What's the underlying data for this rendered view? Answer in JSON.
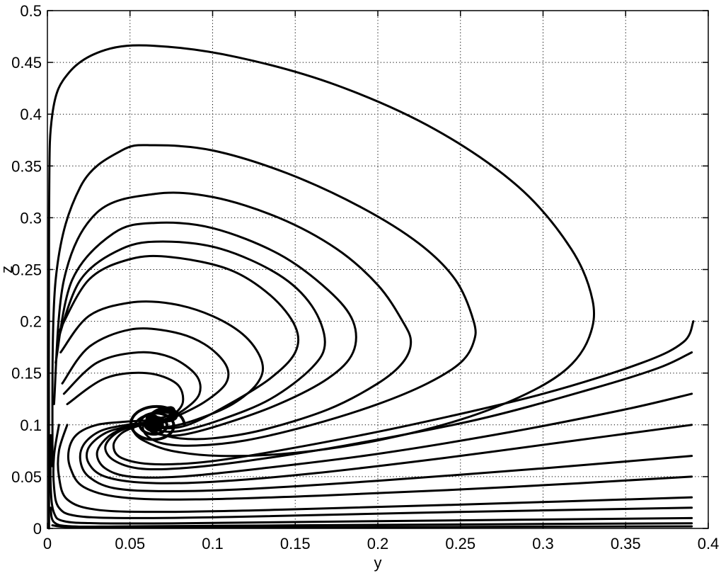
{
  "chart_data": {
    "type": "line",
    "title": "",
    "xlabel": "y",
    "ylabel": "z",
    "xlim": [
      0,
      0.4
    ],
    "ylim": [
      0,
      0.5
    ],
    "grid": true,
    "grid_style": "dotted",
    "legend": "none",
    "line_color": "#000000",
    "x_ticks": [
      0,
      0.05,
      0.1,
      0.15,
      0.2,
      0.25,
      0.3,
      0.35,
      0.4
    ],
    "x_tick_labels": [
      "0",
      "0.05",
      "0.1",
      "0.15",
      "0.2",
      "0.25",
      "0.3",
      "0.35",
      "0.4"
    ],
    "y_ticks": [
      0,
      0.05,
      0.1,
      0.15,
      0.2,
      0.25,
      0.3,
      0.35,
      0.4,
      0.45,
      0.5
    ],
    "y_tick_labels": [
      "0",
      "0.05",
      "0.1",
      "0.15",
      "0.2",
      "0.25",
      "0.3",
      "0.35",
      "0.4",
      "0.45",
      "0.5"
    ],
    "equilibrium": [
      0.065,
      0.1
    ],
    "series": [
      {
        "x": [
          0.001,
          0.001,
          0.003,
          0.013,
          0.035,
          0.065,
          0.115,
          0.175,
          0.235,
          0.285,
          0.317,
          0.33,
          0.328,
          0.315,
          0.29,
          0.25,
          0.2,
          0.15,
          0.105,
          0.075,
          0.058,
          0.052,
          0.055,
          0.062,
          0.066,
          0.066,
          0.064
        ],
        "y": [
          0.0,
          0.3,
          0.4,
          0.44,
          0.462,
          0.466,
          0.455,
          0.428,
          0.385,
          0.33,
          0.27,
          0.22,
          0.185,
          0.155,
          0.13,
          0.105,
          0.085,
          0.073,
          0.07,
          0.075,
          0.085,
          0.095,
          0.105,
          0.11,
          0.105,
          0.098,
          0.097
        ]
      },
      {
        "x": [
          0.003,
          0.005,
          0.02,
          0.045,
          0.065,
          0.1,
          0.145,
          0.19,
          0.225,
          0.247,
          0.258,
          0.258,
          0.25,
          0.23,
          0.2,
          0.16,
          0.12,
          0.09,
          0.07,
          0.06,
          0.058,
          0.063,
          0.067,
          0.066,
          0.064
        ],
        "y": [
          0.06,
          0.24,
          0.33,
          0.365,
          0.37,
          0.365,
          0.343,
          0.31,
          0.275,
          0.24,
          0.2,
          0.18,
          0.16,
          0.14,
          0.12,
          0.1,
          0.085,
          0.08,
          0.082,
          0.09,
          0.1,
          0.108,
          0.105,
          0.099,
          0.097
        ]
      },
      {
        "x": [
          0.004,
          0.01,
          0.03,
          0.065,
          0.1,
          0.14,
          0.175,
          0.2,
          0.215,
          0.22,
          0.215,
          0.2,
          0.17,
          0.13,
          0.1,
          0.08,
          0.065,
          0.06,
          0.063,
          0.067,
          0.065
        ],
        "y": [
          0.12,
          0.24,
          0.305,
          0.323,
          0.32,
          0.3,
          0.27,
          0.235,
          0.2,
          0.18,
          0.16,
          0.14,
          0.115,
          0.095,
          0.087,
          0.087,
          0.093,
          0.101,
          0.106,
          0.102,
          0.098
        ]
      },
      {
        "x": [
          0.005,
          0.015,
          0.04,
          0.065,
          0.1,
          0.14,
          0.17,
          0.185,
          0.185,
          0.17,
          0.14,
          0.105,
          0.08,
          0.065,
          0.06,
          0.064,
          0.067,
          0.065
        ],
        "y": [
          0.16,
          0.24,
          0.285,
          0.295,
          0.29,
          0.265,
          0.23,
          0.2,
          0.17,
          0.145,
          0.12,
          0.1,
          0.09,
          0.092,
          0.1,
          0.106,
          0.102,
          0.098
        ]
      },
      {
        "x": [
          0.006,
          0.02,
          0.045,
          0.07,
          0.105,
          0.14,
          0.16,
          0.168,
          0.16,
          0.135,
          0.105,
          0.08,
          0.066,
          0.061,
          0.065,
          0.067
        ],
        "y": [
          0.18,
          0.24,
          0.27,
          0.277,
          0.27,
          0.245,
          0.215,
          0.18,
          0.155,
          0.125,
          0.105,
          0.094,
          0.095,
          0.102,
          0.107,
          0.101
        ]
      },
      {
        "x": [
          0.007,
          0.025,
          0.05,
          0.075,
          0.11,
          0.135,
          0.15,
          0.15,
          0.135,
          0.11,
          0.085,
          0.068,
          0.062,
          0.066,
          0.067
        ],
        "y": [
          0.19,
          0.24,
          0.26,
          0.262,
          0.25,
          0.225,
          0.195,
          0.17,
          0.145,
          0.12,
          0.1,
          0.097,
          0.104,
          0.107,
          0.1
        ]
      },
      {
        "x": [
          0.008,
          0.025,
          0.05,
          0.075,
          0.1,
          0.12,
          0.13,
          0.127,
          0.112,
          0.09,
          0.072,
          0.064,
          0.064,
          0.067
        ],
        "y": [
          0.17,
          0.205,
          0.218,
          0.217,
          0.205,
          0.185,
          0.16,
          0.14,
          0.12,
          0.105,
          0.098,
          0.102,
          0.107,
          0.103
        ]
      },
      {
        "x": [
          0.009,
          0.025,
          0.05,
          0.075,
          0.095,
          0.108,
          0.108,
          0.095,
          0.078,
          0.066,
          0.062,
          0.066,
          0.067
        ],
        "y": [
          0.14,
          0.175,
          0.192,
          0.19,
          0.178,
          0.158,
          0.14,
          0.122,
          0.108,
          0.1,
          0.104,
          0.108,
          0.102
        ]
      },
      {
        "x": [
          0.01,
          0.03,
          0.055,
          0.075,
          0.09,
          0.092,
          0.083,
          0.07,
          0.062,
          0.064,
          0.068
        ],
        "y": [
          0.13,
          0.16,
          0.17,
          0.165,
          0.148,
          0.13,
          0.115,
          0.104,
          0.102,
          0.108,
          0.104
        ]
      },
      {
        "x": [
          0.012,
          0.035,
          0.06,
          0.078,
          0.082,
          0.075,
          0.065,
          0.061,
          0.065,
          0.068
        ],
        "y": [
          0.12,
          0.145,
          0.15,
          0.14,
          0.122,
          0.108,
          0.1,
          0.104,
          0.109,
          0.103
        ]
      },
      {
        "x": [
          0.391,
          0.385,
          0.36,
          0.3,
          0.22,
          0.15,
          0.1,
          0.065,
          0.045,
          0.04,
          0.045,
          0.055,
          0.065,
          0.075,
          0.078,
          0.072,
          0.064,
          0.06,
          0.064,
          0.068,
          0.066
        ],
        "y": [
          0.2,
          0.18,
          0.16,
          0.13,
          0.1,
          0.078,
          0.065,
          0.062,
          0.068,
          0.08,
          0.092,
          0.099,
          0.102,
          0.104,
          0.108,
          0.112,
          0.112,
          0.106,
          0.1,
          0.099,
          0.1
        ]
      },
      {
        "x": [
          0.39,
          0.37,
          0.33,
          0.26,
          0.18,
          0.12,
          0.08,
          0.055,
          0.04,
          0.035,
          0.04,
          0.05,
          0.062,
          0.072,
          0.076,
          0.07,
          0.063,
          0.06,
          0.065,
          0.068
        ],
        "y": [
          0.17,
          0.155,
          0.135,
          0.105,
          0.08,
          0.065,
          0.058,
          0.058,
          0.066,
          0.078,
          0.09,
          0.098,
          0.101,
          0.104,
          0.109,
          0.113,
          0.11,
          0.104,
          0.099,
          0.101
        ]
      },
      {
        "x": [
          0.39,
          0.35,
          0.28,
          0.2,
          0.13,
          0.08,
          0.05,
          0.035,
          0.03,
          0.035,
          0.045,
          0.058,
          0.07,
          0.077,
          0.072,
          0.064,
          0.061,
          0.066
        ],
        "y": [
          0.13,
          0.115,
          0.093,
          0.072,
          0.058,
          0.05,
          0.05,
          0.058,
          0.072,
          0.086,
          0.096,
          0.1,
          0.103,
          0.109,
          0.114,
          0.112,
          0.104,
          0.1
        ]
      },
      {
        "x": [
          0.39,
          0.32,
          0.24,
          0.16,
          0.1,
          0.06,
          0.035,
          0.025,
          0.025,
          0.035,
          0.05,
          0.065,
          0.075,
          0.074,
          0.066,
          0.061,
          0.065
        ],
        "y": [
          0.1,
          0.085,
          0.068,
          0.053,
          0.045,
          0.044,
          0.05,
          0.063,
          0.078,
          0.092,
          0.099,
          0.103,
          0.108,
          0.115,
          0.114,
          0.106,
          0.1
        ]
      },
      {
        "x": [
          0.39,
          0.3,
          0.2,
          0.12,
          0.07,
          0.04,
          0.025,
          0.02,
          0.022,
          0.032,
          0.048,
          0.064,
          0.075,
          0.075,
          0.067,
          0.061,
          0.065
        ],
        "y": [
          0.07,
          0.058,
          0.046,
          0.038,
          0.036,
          0.039,
          0.05,
          0.065,
          0.081,
          0.094,
          0.1,
          0.103,
          0.108,
          0.116,
          0.115,
          0.107,
          0.1
        ]
      },
      {
        "x": [
          0.39,
          0.28,
          0.17,
          0.09,
          0.045,
          0.022,
          0.014,
          0.013,
          0.018,
          0.03,
          0.047,
          0.064,
          0.076,
          0.075,
          0.066
        ],
        "y": [
          0.05,
          0.04,
          0.032,
          0.028,
          0.03,
          0.04,
          0.058,
          0.076,
          0.091,
          0.1,
          0.103,
          0.105,
          0.111,
          0.117,
          0.114
        ]
      },
      {
        "x": [
          0.39,
          0.25,
          0.14,
          0.07,
          0.03,
          0.012,
          0.007,
          0.007,
          0.012
        ],
        "y": [
          0.03,
          0.023,
          0.018,
          0.016,
          0.018,
          0.028,
          0.05,
          0.075,
          0.1
        ]
      },
      {
        "x": [
          0.39,
          0.22,
          0.11,
          0.05,
          0.018,
          0.007,
          0.004,
          0.004,
          0.007
        ],
        "y": [
          0.02,
          0.015,
          0.011,
          0.01,
          0.012,
          0.02,
          0.04,
          0.07,
          0.1
        ]
      },
      {
        "x": [
          0.39,
          0.2,
          0.08,
          0.03,
          0.01,
          0.004,
          0.002,
          0.002
        ],
        "y": [
          0.01,
          0.007,
          0.005,
          0.005,
          0.007,
          0.015,
          0.04,
          0.09
        ]
      },
      {
        "x": [
          0.39,
          0.15,
          0.05,
          0.015,
          0.004,
          0.002
        ],
        "y": [
          0.005,
          0.003,
          0.002,
          0.002,
          0.006,
          0.02
        ]
      },
      {
        "x": [
          0.39,
          0.1,
          0.02,
          0.003
        ],
        "y": [
          0.002,
          0.001,
          0.001,
          0.003
        ]
      }
    ]
  }
}
